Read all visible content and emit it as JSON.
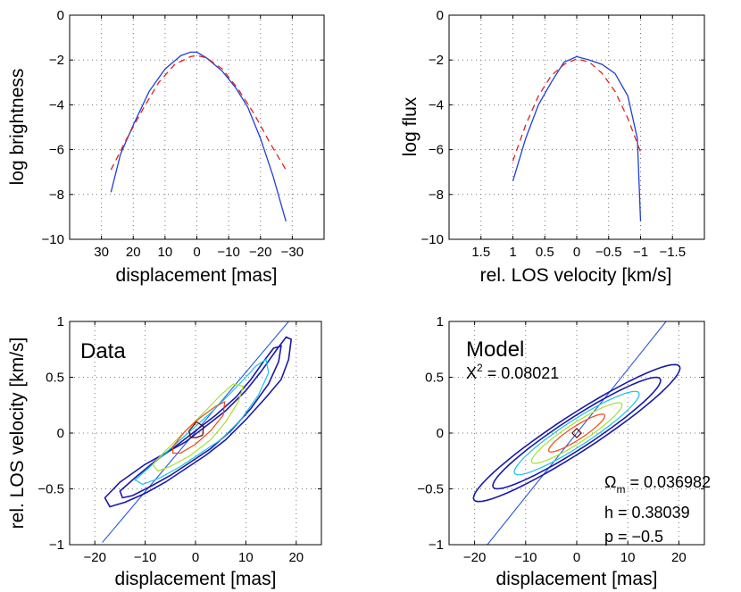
{
  "chart_data": [
    {
      "id": "brightness",
      "type": "line",
      "xlabel": "displacement [mas]",
      "ylabel": "log brightness",
      "xlim": [
        40,
        -40
      ],
      "ylim": [
        -10,
        0
      ],
      "xticks": [
        30,
        20,
        10,
        0,
        -10,
        -20,
        -30
      ],
      "xtick_labels": [
        "30",
        "20",
        "10",
        "0",
        "−10",
        "−20",
        "−30"
      ],
      "yticks": [
        0,
        -2,
        -4,
        -6,
        -8,
        -10
      ],
      "ytick_labels": [
        "0",
        "−2",
        "−4",
        "−6",
        "−8",
        "−10"
      ],
      "grid": true,
      "series": [
        {
          "name": "data",
          "color": "#1f3fd8",
          "style": "solid",
          "x": [
            27,
            24,
            20,
            15,
            10,
            5,
            2,
            0,
            -3,
            -8,
            -12,
            -16,
            -20,
            -24,
            -28
          ],
          "y": [
            -7.9,
            -6.2,
            -4.9,
            -3.4,
            -2.4,
            -1.8,
            -1.65,
            -1.65,
            -1.9,
            -2.5,
            -3.2,
            -4.1,
            -5.5,
            -7.2,
            -9.2
          ]
        },
        {
          "name": "model",
          "color": "#e02020",
          "style": "dashed",
          "x": [
            27,
            22,
            17,
            12,
            7,
            2,
            0,
            -3,
            -8,
            -13,
            -18,
            -23,
            -28
          ],
          "y": [
            -6.9,
            -5.5,
            -4.2,
            -3.0,
            -2.2,
            -1.85,
            -1.8,
            -1.9,
            -2.4,
            -3.3,
            -4.4,
            -5.7,
            -6.9
          ]
        }
      ]
    },
    {
      "id": "flux",
      "type": "line",
      "xlabel": "rel. LOS velocity [km/s]",
      "ylabel": "log flux",
      "xlim": [
        2,
        -2
      ],
      "ylim": [
        -10,
        0
      ],
      "xticks": [
        1.5,
        1,
        0.5,
        0,
        -0.5,
        -1,
        -1.5
      ],
      "xtick_labels": [
        "1.5",
        "1",
        "0.5",
        "0",
        "−0.5",
        "−1",
        "−1.5"
      ],
      "yticks": [
        0,
        -2,
        -4,
        -6,
        -8,
        -10
      ],
      "ytick_labels": [
        "0",
        "−2",
        "−4",
        "−6",
        "−8",
        "−10"
      ],
      "grid": true,
      "series": [
        {
          "name": "data",
          "color": "#1f3fd8",
          "style": "solid",
          "x": [
            1,
            0.8,
            0.6,
            0.4,
            0.2,
            0,
            -0.2,
            -0.4,
            -0.6,
            -0.8,
            -0.95,
            -1.0
          ],
          "y": [
            -7.4,
            -5.5,
            -4.0,
            -3.0,
            -2.1,
            -1.85,
            -2.0,
            -2.2,
            -2.6,
            -3.6,
            -5.5,
            -9.2
          ]
        },
        {
          "name": "model",
          "color": "#e02020",
          "style": "dashed",
          "x": [
            1,
            0.8,
            0.6,
            0.4,
            0.2,
            0,
            -0.2,
            -0.4,
            -0.6,
            -0.8,
            -1.0
          ],
          "y": [
            -6.5,
            -4.9,
            -3.6,
            -2.7,
            -2.2,
            -1.95,
            -2.1,
            -2.6,
            -3.4,
            -4.6,
            -6.1
          ]
        }
      ]
    },
    {
      "id": "data_contours",
      "type": "contour",
      "title": "Data",
      "xlabel": "displacement [mas]",
      "ylabel": "rel. LOS velocity [km/s]",
      "xlim": [
        -25,
        25
      ],
      "ylim": [
        -1,
        1
      ],
      "xticks": [
        -20,
        -10,
        0,
        10,
        20
      ],
      "xtick_labels": [
        "−20",
        "−10",
        "0",
        "10",
        "20"
      ],
      "yticks": [
        1,
        0.5,
        0,
        -0.5,
        -1
      ],
      "ytick_labels": [
        "1",
        "0.5",
        "0",
        "−0.5",
        "−1"
      ],
      "grid": true,
      "line": {
        "color": "#2858e0",
        "x": [
          -18.5,
          18.5
        ],
        "y": [
          -0.98,
          1.0
        ]
      },
      "contours": [
        {
          "level": 1,
          "color": "#1a1aa8",
          "points": [
            [
              -18,
              -0.58
            ],
            [
              -15,
              -0.44
            ],
            [
              -10,
              -0.28
            ],
            [
              -6,
              -0.18
            ],
            [
              -2,
              -0.08
            ],
            [
              2,
              0.06
            ],
            [
              6,
              0.2
            ],
            [
              10,
              0.38
            ],
            [
              13,
              0.55
            ],
            [
              16,
              0.74
            ],
            [
              18,
              0.86
            ],
            [
              19,
              0.84
            ],
            [
              18.5,
              0.66
            ],
            [
              17,
              0.48
            ],
            [
              14,
              0.32
            ],
            [
              10,
              0.12
            ],
            [
              6,
              -0.06
            ],
            [
              2,
              -0.2
            ],
            [
              -2,
              -0.32
            ],
            [
              -6,
              -0.44
            ],
            [
              -10,
              -0.54
            ],
            [
              -14,
              -0.62
            ],
            [
              -17,
              -0.66
            ]
          ]
        },
        {
          "level": 2,
          "color": "#1a1aa8",
          "points": [
            [
              -15,
              -0.52
            ],
            [
              -12,
              -0.4
            ],
            [
              -8,
              -0.25
            ],
            [
              -4,
              -0.12
            ],
            [
              0,
              0.02
            ],
            [
              4,
              0.16
            ],
            [
              8,
              0.32
            ],
            [
              11,
              0.48
            ],
            [
              13.5,
              0.64
            ],
            [
              15.5,
              0.76
            ],
            [
              17,
              0.78
            ],
            [
              16.5,
              0.64
            ],
            [
              14.5,
              0.44
            ],
            [
              11,
              0.22
            ],
            [
              7,
              0.02
            ],
            [
              3,
              -0.14
            ],
            [
              -1,
              -0.26
            ],
            [
              -5,
              -0.38
            ],
            [
              -9,
              -0.48
            ],
            [
              -12.5,
              -0.56
            ],
            [
              -14.5,
              -0.58
            ]
          ]
        },
        {
          "level": 3,
          "color": "#19c0e8",
          "points": [
            [
              -12,
              -0.42
            ],
            [
              -9,
              -0.3
            ],
            [
              -5,
              -0.14
            ],
            [
              -1,
              0.02
            ],
            [
              3,
              0.18
            ],
            [
              7,
              0.36
            ],
            [
              10,
              0.5
            ],
            [
              12,
              0.6
            ],
            [
              14,
              0.66
            ],
            [
              14.5,
              0.54
            ],
            [
              12.5,
              0.34
            ],
            [
              9,
              0.12
            ],
            [
              5,
              -0.06
            ],
            [
              1,
              -0.18
            ],
            [
              -3,
              -0.3
            ],
            [
              -7,
              -0.4
            ],
            [
              -10.5,
              -0.46
            ]
          ]
        },
        {
          "level": 4,
          "color": "#a8e030",
          "points": [
            [
              -8.5,
              -0.28
            ],
            [
              -6,
              -0.16
            ],
            [
              -2,
              0.02
            ],
            [
              2,
              0.2
            ],
            [
              5,
              0.34
            ],
            [
              7.5,
              0.44
            ],
            [
              9.5,
              0.42
            ],
            [
              8.5,
              0.28
            ],
            [
              6,
              0.1
            ],
            [
              3,
              -0.06
            ],
            [
              -1,
              -0.2
            ],
            [
              -5,
              -0.3
            ],
            [
              -7.5,
              -0.34
            ]
          ]
        },
        {
          "level": 5,
          "color": "#f04818",
          "points": [
            [
              -4.5,
              -0.12
            ],
            [
              -2,
              0.02
            ],
            [
              1,
              0.14
            ],
            [
              4,
              0.24
            ],
            [
              5.8,
              0.28
            ],
            [
              5.5,
              0.16
            ],
            [
              3,
              0.02
            ],
            [
              0,
              -0.1
            ],
            [
              -3,
              -0.18
            ],
            [
              -4.5,
              -0.18
            ]
          ]
        },
        {
          "level": 6,
          "color": "#600000",
          "points": [
            [
              -1.3,
              0.02
            ],
            [
              0.2,
              0.1
            ],
            [
              1.6,
              0.06
            ],
            [
              1.4,
              -0.02
            ],
            [
              0.2,
              -0.04
            ],
            [
              -1,
              -0.04
            ]
          ]
        }
      ]
    },
    {
      "id": "model_contours",
      "type": "contour",
      "title": "Model",
      "chi_label": "X",
      "chi_sup": "2",
      "chi_value": " = 0.08021",
      "omega_label": "Ω",
      "omega_sub": "m",
      "omega_value": " = 0.036982",
      "h_text": "h = 0.38039",
      "p_text": "p = −0.5",
      "xlabel": "displacement [mas]",
      "xlim": [
        -25,
        25
      ],
      "ylim": [
        -1,
        1
      ],
      "xticks": [
        -20,
        -10,
        0,
        10,
        20
      ],
      "xtick_labels": [
        "−20",
        "−10",
        "0",
        "10",
        "20"
      ],
      "yticks": [
        1,
        0.5,
        0,
        -0.5,
        -1
      ],
      "ytick_labels": [
        "1",
        "0.5",
        "0",
        "−0.5",
        "−1"
      ],
      "grid": true,
      "line": {
        "color": "#2858e0",
        "x": [
          -17.5,
          17.5
        ],
        "y": [
          -1.0,
          1.0
        ]
      },
      "contours": [
        {
          "level": 1,
          "type": "ellipse",
          "color": "#1a1aa8",
          "cx": 0,
          "cy": 0,
          "a": 24,
          "b": 3.6,
          "angle": 33
        },
        {
          "level": 2,
          "type": "ellipse",
          "color": "#1a1aa8",
          "cx": 0,
          "cy": 0,
          "a": 19.5,
          "b": 3.0,
          "angle": 33
        },
        {
          "level": 3,
          "type": "ellipse",
          "color": "#19c0e8",
          "cx": 0,
          "cy": 0,
          "a": 14.5,
          "b": 2.5,
          "angle": 33
        },
        {
          "level": 4,
          "type": "ellipse",
          "color": "#a8e030",
          "cx": 0,
          "cy": 0,
          "a": 10.5,
          "b": 1.9,
          "angle": 33
        },
        {
          "level": 5,
          "type": "ellipse",
          "color": "#f04818",
          "cx": 0,
          "cy": 0,
          "a": 6.5,
          "b": 1.3,
          "angle": 33
        },
        {
          "level": 6,
          "type": "diamond",
          "color": "#600000",
          "cx": 0,
          "cy": 0,
          "dx": 0.9,
          "dy": 0.04
        }
      ]
    }
  ]
}
